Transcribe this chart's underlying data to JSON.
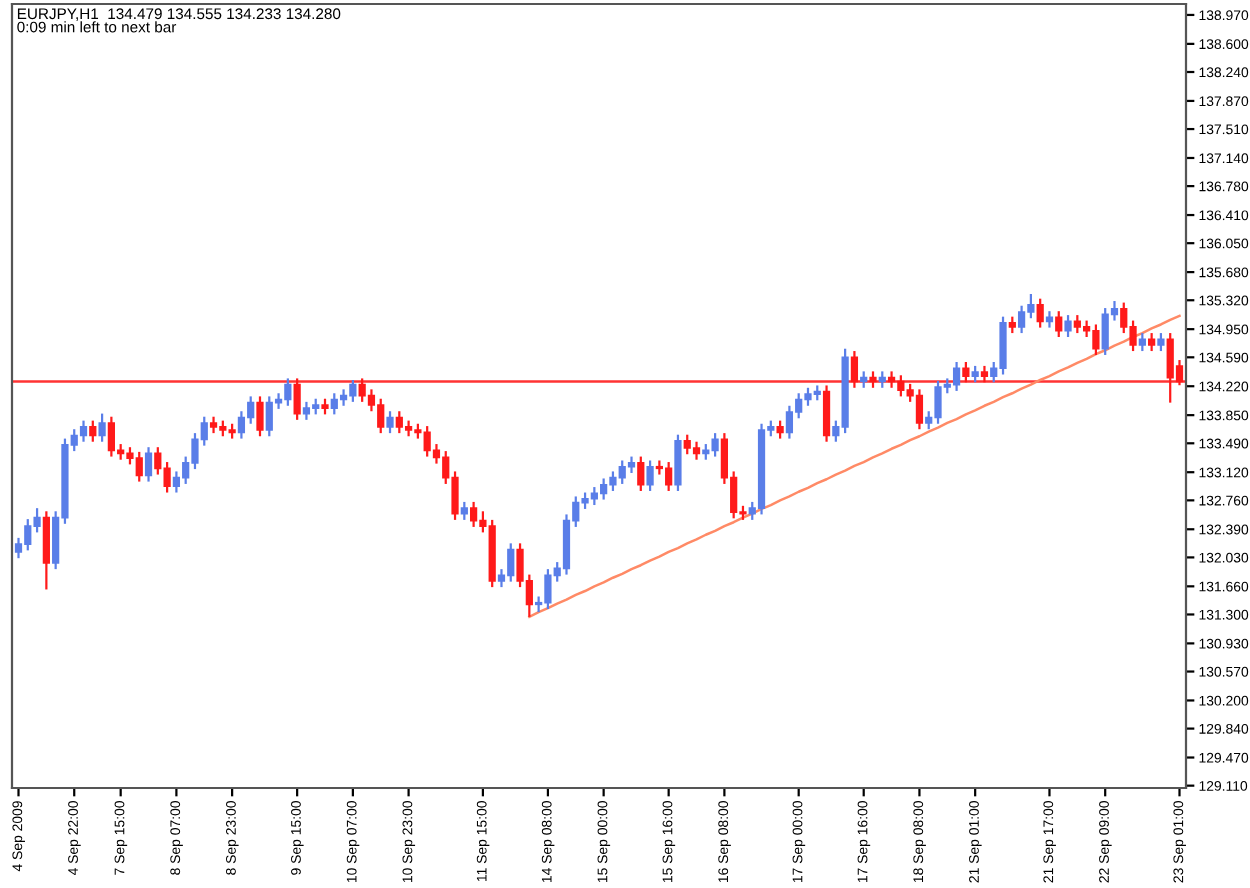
{
  "chart_data": {
    "type": "candlestick",
    "title": "EURJPY,H1  134.479 134.555 134.233 134.280",
    "subtitle": "0:09 min left to next bar",
    "categories": [
      "4 Sep 2009",
      null,
      null,
      null,
      null,
      null,
      "4 Sep 22:00",
      null,
      null,
      null,
      null,
      "7 Sep 15:00",
      null,
      null,
      null,
      null,
      null,
      "8 Sep 07:00",
      null,
      null,
      null,
      null,
      null,
      "8 Sep 23:00",
      null,
      null,
      null,
      null,
      null,
      null,
      "9 Sep 15:00",
      null,
      null,
      null,
      null,
      null,
      "10 Sep 07:00",
      null,
      null,
      null,
      null,
      null,
      "10 Sep 23:00",
      null,
      null,
      null,
      null,
      null,
      null,
      null,
      "11 Sep 15:00",
      null,
      null,
      null,
      null,
      null,
      null,
      "14 Sep 08:00",
      null,
      null,
      null,
      null,
      null,
      "15 Sep 00:00",
      null,
      null,
      null,
      null,
      null,
      null,
      "15 Sep 16:00",
      null,
      null,
      null,
      null,
      null,
      "16 Sep 08:00",
      null,
      null,
      null,
      null,
      null,
      null,
      null,
      "17 Sep 00:00",
      null,
      null,
      null,
      null,
      null,
      null,
      "17 Sep 16:00",
      null,
      null,
      null,
      null,
      null,
      "18 Sep 08:00",
      null,
      null,
      null,
      null,
      null,
      "21 Sep 01:00",
      null,
      null,
      null,
      null,
      null,
      null,
      null,
      "21 Sep 17:00",
      null,
      null,
      null,
      null,
      null,
      "22 Sep 09:00",
      null,
      null,
      null,
      null,
      null,
      null,
      null,
      "23 Sep 01:00"
    ],
    "ohlc": [
      [
        132.1,
        132.28,
        132.02,
        132.2
      ],
      [
        132.2,
        132.52,
        132.12,
        132.43
      ],
      [
        132.43,
        132.66,
        132.35,
        132.54
      ],
      [
        132.54,
        132.62,
        131.62,
        131.96
      ],
      [
        131.96,
        132.62,
        131.88,
        132.54
      ],
      [
        132.54,
        133.55,
        132.46,
        133.47
      ],
      [
        133.47,
        133.67,
        133.39,
        133.59
      ],
      [
        133.59,
        133.78,
        133.51,
        133.7
      ],
      [
        133.7,
        133.78,
        133.51,
        133.59
      ],
      [
        133.59,
        133.87,
        133.51,
        133.75
      ],
      [
        133.75,
        133.83,
        133.32,
        133.4
      ],
      [
        133.4,
        133.48,
        133.28,
        133.36
      ],
      [
        133.36,
        133.44,
        133.22,
        133.3
      ],
      [
        133.3,
        133.38,
        133.0,
        133.08
      ],
      [
        133.08,
        133.44,
        133.0,
        133.36
      ],
      [
        133.36,
        133.44,
        133.09,
        133.17
      ],
      [
        133.17,
        133.25,
        132.86,
        132.94
      ],
      [
        132.94,
        133.13,
        132.86,
        133.05
      ],
      [
        133.05,
        133.32,
        132.97,
        133.24
      ],
      [
        133.24,
        133.62,
        133.16,
        133.54
      ],
      [
        133.54,
        133.83,
        133.46,
        133.75
      ],
      [
        133.75,
        133.83,
        133.62,
        133.7
      ],
      [
        133.7,
        133.78,
        133.58,
        133.66
      ],
      [
        133.66,
        133.74,
        133.55,
        133.63
      ],
      [
        133.63,
        133.9,
        133.55,
        133.82
      ],
      [
        133.82,
        134.09,
        133.74,
        134.01
      ],
      [
        134.01,
        134.09,
        133.58,
        133.66
      ],
      [
        133.66,
        134.09,
        133.58,
        134.01
      ],
      [
        134.01,
        134.13,
        133.93,
        134.05
      ],
      [
        134.05,
        134.32,
        133.97,
        134.24
      ],
      [
        134.24,
        134.32,
        133.79,
        133.87
      ],
      [
        133.87,
        134.02,
        133.79,
        133.94
      ],
      [
        133.94,
        134.06,
        133.86,
        133.98
      ],
      [
        133.98,
        134.06,
        133.86,
        133.94
      ],
      [
        133.94,
        134.13,
        133.86,
        134.05
      ],
      [
        134.05,
        134.18,
        133.97,
        134.1
      ],
      [
        134.1,
        134.3,
        134.02,
        134.24
      ],
      [
        134.24,
        134.32,
        134.02,
        134.1
      ],
      [
        134.1,
        134.18,
        133.9,
        133.98
      ],
      [
        133.98,
        134.06,
        133.62,
        133.7
      ],
      [
        133.7,
        133.9,
        133.62,
        133.82
      ],
      [
        133.82,
        133.9,
        133.62,
        133.7
      ],
      [
        133.7,
        133.78,
        133.58,
        133.66
      ],
      [
        133.66,
        133.74,
        133.55,
        133.63
      ],
      [
        133.63,
        133.71,
        133.32,
        133.4
      ],
      [
        133.4,
        133.48,
        133.23,
        133.31
      ],
      [
        133.31,
        133.39,
        132.97,
        133.05
      ],
      [
        133.05,
        133.13,
        132.51,
        132.59
      ],
      [
        132.59,
        132.74,
        132.51,
        132.66
      ],
      [
        132.66,
        132.74,
        132.42,
        132.5
      ],
      [
        132.5,
        132.62,
        132.35,
        132.43
      ],
      [
        132.43,
        132.51,
        131.65,
        131.73
      ],
      [
        131.73,
        131.88,
        131.65,
        131.8
      ],
      [
        131.8,
        132.21,
        131.72,
        132.13
      ],
      [
        132.13,
        132.21,
        131.65,
        131.73
      ],
      [
        131.73,
        131.81,
        131.27,
        131.43
      ],
      [
        131.43,
        131.53,
        131.33,
        131.45
      ],
      [
        131.45,
        131.88,
        131.37,
        131.8
      ],
      [
        131.8,
        131.97,
        131.72,
        131.89
      ],
      [
        131.89,
        132.58,
        131.81,
        132.5
      ],
      [
        132.5,
        132.81,
        132.42,
        132.73
      ],
      [
        132.73,
        132.86,
        132.65,
        132.78
      ],
      [
        132.78,
        132.93,
        132.7,
        132.85
      ],
      [
        132.85,
        133.04,
        132.77,
        132.96
      ],
      [
        132.96,
        133.13,
        132.88,
        133.05
      ],
      [
        133.05,
        133.27,
        132.97,
        133.19
      ],
      [
        133.19,
        133.32,
        133.11,
        133.24
      ],
      [
        133.24,
        133.32,
        132.88,
        132.96
      ],
      [
        132.96,
        133.27,
        132.88,
        133.19
      ],
      [
        133.19,
        133.27,
        133.09,
        133.17
      ],
      [
        133.17,
        133.25,
        132.88,
        132.96
      ],
      [
        132.96,
        133.6,
        132.88,
        133.52
      ],
      [
        133.52,
        133.6,
        133.35,
        133.43
      ],
      [
        133.43,
        133.51,
        133.28,
        133.36
      ],
      [
        133.36,
        133.48,
        133.28,
        133.4
      ],
      [
        133.4,
        133.62,
        133.32,
        133.54
      ],
      [
        133.54,
        133.62,
        132.97,
        133.05
      ],
      [
        133.05,
        133.13,
        132.53,
        132.61
      ],
      [
        132.61,
        132.69,
        132.51,
        132.59
      ],
      [
        132.59,
        132.74,
        132.51,
        132.66
      ],
      [
        132.66,
        133.74,
        132.58,
        133.66
      ],
      [
        133.66,
        133.78,
        133.58,
        133.7
      ],
      [
        133.7,
        133.78,
        133.55,
        133.63
      ],
      [
        133.63,
        133.97,
        133.55,
        133.89
      ],
      [
        133.89,
        134.13,
        133.81,
        134.05
      ],
      [
        134.05,
        134.2,
        133.97,
        134.12
      ],
      [
        134.12,
        134.23,
        134.04,
        134.15
      ],
      [
        134.15,
        134.23,
        133.51,
        133.59
      ],
      [
        133.59,
        133.78,
        133.51,
        133.7
      ],
      [
        133.7,
        134.7,
        133.62,
        134.59
      ],
      [
        134.59,
        134.67,
        134.2,
        134.28
      ],
      [
        134.28,
        134.41,
        134.2,
        134.33
      ],
      [
        134.33,
        134.41,
        134.2,
        134.28
      ],
      [
        134.28,
        134.41,
        134.2,
        134.33
      ],
      [
        134.33,
        134.41,
        134.2,
        134.28
      ],
      [
        134.28,
        134.36,
        134.09,
        134.17
      ],
      [
        134.17,
        134.25,
        134.02,
        134.1
      ],
      [
        134.1,
        134.18,
        133.67,
        133.75
      ],
      [
        133.75,
        133.9,
        133.67,
        133.82
      ],
      [
        133.82,
        134.29,
        133.74,
        134.21
      ],
      [
        134.21,
        134.32,
        134.13,
        134.24
      ],
      [
        134.24,
        134.53,
        134.16,
        134.45
      ],
      [
        134.45,
        134.53,
        134.27,
        134.35
      ],
      [
        134.35,
        134.48,
        134.27,
        134.4
      ],
      [
        134.4,
        134.48,
        134.27,
        134.35
      ],
      [
        134.35,
        134.53,
        134.27,
        134.45
      ],
      [
        134.45,
        135.11,
        134.37,
        135.03
      ],
      [
        135.03,
        135.11,
        134.9,
        134.98
      ],
      [
        134.98,
        135.25,
        134.9,
        135.17
      ],
      [
        135.17,
        135.4,
        135.09,
        135.26
      ],
      [
        135.26,
        135.34,
        134.97,
        135.05
      ],
      [
        135.05,
        135.18,
        134.97,
        135.1
      ],
      [
        135.1,
        135.18,
        134.85,
        134.93
      ],
      [
        134.93,
        135.13,
        134.85,
        135.05
      ],
      [
        135.05,
        135.13,
        134.9,
        134.98
      ],
      [
        134.98,
        135.06,
        134.85,
        134.93
      ],
      [
        134.93,
        135.01,
        134.62,
        134.7
      ],
      [
        134.7,
        135.22,
        134.62,
        135.14
      ],
      [
        135.14,
        135.31,
        135.06,
        135.21
      ],
      [
        135.21,
        135.29,
        134.9,
        134.98
      ],
      [
        134.98,
        135.06,
        134.67,
        134.75
      ],
      [
        134.75,
        134.9,
        134.67,
        134.82
      ],
      [
        134.82,
        134.9,
        134.67,
        134.75
      ],
      [
        134.75,
        134.9,
        134.67,
        134.82
      ],
      [
        134.82,
        134.9,
        134.01,
        134.33
      ],
      [
        134.479,
        134.555,
        134.233,
        134.28
      ]
    ],
    "series": [
      {
        "type": "line",
        "color": "#ff8a66",
        "values": [
          null,
          null,
          null,
          null,
          null,
          null,
          null,
          null,
          null,
          null,
          null,
          null,
          null,
          null,
          null,
          null,
          null,
          null,
          null,
          null,
          null,
          null,
          null,
          null,
          null,
          null,
          null,
          null,
          null,
          null,
          null,
          null,
          null,
          null,
          null,
          null,
          null,
          null,
          null,
          null,
          null,
          null,
          null,
          null,
          null,
          null,
          null,
          null,
          null,
          null,
          null,
          null,
          null,
          null,
          null,
          131.27,
          131.33,
          131.38,
          131.44,
          131.49,
          131.55,
          131.6,
          131.66,
          131.71,
          131.77,
          131.82,
          131.88,
          131.93,
          131.99,
          132.04,
          132.1,
          132.15,
          132.21,
          132.26,
          132.32,
          132.37,
          132.43,
          132.48,
          132.54,
          132.59,
          132.65,
          132.7,
          132.76,
          132.81,
          132.87,
          132.92,
          132.98,
          133.03,
          133.09,
          133.14,
          133.2,
          133.25,
          133.31,
          133.36,
          133.42,
          133.47,
          133.53,
          133.58,
          133.64,
          133.69,
          133.75,
          133.8,
          133.86,
          133.91,
          133.97,
          134.02,
          134.08,
          134.13,
          134.19,
          134.24,
          134.3,
          134.35,
          134.41,
          134.46,
          134.52,
          134.57,
          134.63,
          134.68,
          134.74,
          134.79,
          134.85,
          134.9,
          134.96,
          135.01,
          135.07,
          135.12
        ]
      }
    ],
    "ref_lines": [
      {
        "axis": "y",
        "value": 134.28,
        "color": "#ff3333"
      }
    ],
    "ylim": [
      129.08,
      139.11
    ],
    "yticks": [
      {
        "value": 129.11,
        "label": "129.110"
      },
      {
        "value": 129.47,
        "label": "129.470"
      },
      {
        "value": 129.84,
        "label": "129.840"
      },
      {
        "value": 130.2,
        "label": "130.200"
      },
      {
        "value": 130.57,
        "label": "130.570"
      },
      {
        "value": 130.93,
        "label": "130.930"
      },
      {
        "value": 131.3,
        "label": "131.300"
      },
      {
        "value": 131.66,
        "label": "131.660"
      },
      {
        "value": 132.03,
        "label": "132.030"
      },
      {
        "value": 132.39,
        "label": "132.390"
      },
      {
        "value": 132.76,
        "label": "132.760"
      },
      {
        "value": 133.12,
        "label": "133.120"
      },
      {
        "value": 133.49,
        "label": "133.490"
      },
      {
        "value": 133.85,
        "label": "133.850"
      },
      {
        "value": 134.22,
        "label": "134.220"
      },
      {
        "value": 134.59,
        "label": "134.590"
      },
      {
        "value": 134.95,
        "label": "134.950"
      },
      {
        "value": 135.32,
        "label": "135.320"
      },
      {
        "value": 135.68,
        "label": "135.680"
      },
      {
        "value": 136.05,
        "label": "136.050"
      },
      {
        "value": 136.41,
        "label": "136.410"
      },
      {
        "value": 136.78,
        "label": "136.780"
      },
      {
        "value": 137.14,
        "label": "137.140"
      },
      {
        "value": 137.51,
        "label": "137.510"
      },
      {
        "value": 137.87,
        "label": "137.870"
      },
      {
        "value": 138.24,
        "label": "138.240"
      },
      {
        "value": 138.6,
        "label": "138.600"
      },
      {
        "value": 138.97,
        "label": "138.970"
      }
    ],
    "grid": false,
    "legend": false
  }
}
